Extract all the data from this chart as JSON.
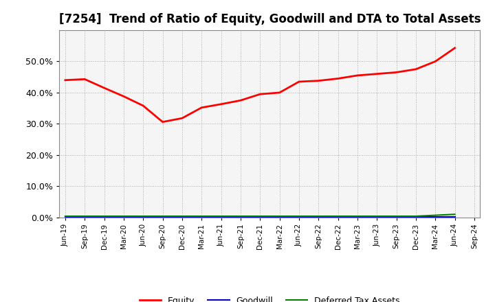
{
  "title": "[7254]  Trend of Ratio of Equity, Goodwill and DTA to Total Assets",
  "x_labels": [
    "Jun-19",
    "Sep-19",
    "Dec-19",
    "Mar-20",
    "Jun-20",
    "Sep-20",
    "Dec-20",
    "Mar-21",
    "Jun-21",
    "Sep-21",
    "Dec-21",
    "Mar-22",
    "Jun-22",
    "Sep-22",
    "Dec-22",
    "Mar-23",
    "Jun-23",
    "Sep-23",
    "Dec-23",
    "Mar-24",
    "Jun-24",
    "Sep-24"
  ],
  "equity_x": [
    0,
    1,
    2,
    3,
    4,
    5,
    6,
    7,
    8,
    9,
    10,
    11,
    12,
    13,
    14,
    15,
    16,
    17,
    18,
    19,
    20
  ],
  "equity": [
    0.44,
    0.443,
    0.415,
    0.388,
    0.358,
    0.306,
    0.318,
    0.352,
    0.363,
    0.375,
    0.395,
    0.4,
    0.435,
    0.438,
    0.445,
    0.455,
    0.46,
    0.465,
    0.475,
    0.5,
    0.543
  ],
  "goodwill_x": [
    0,
    1,
    2,
    3,
    4,
    5,
    6,
    7,
    8,
    9,
    10,
    11,
    12,
    13,
    14,
    15,
    16,
    17,
    18,
    19,
    20
  ],
  "goodwill": [
    0.001,
    0.001,
    0.001,
    0.001,
    0.001,
    0.001,
    0.001,
    0.001,
    0.001,
    0.001,
    0.001,
    0.001,
    0.001,
    0.001,
    0.001,
    0.001,
    0.001,
    0.001,
    0.001,
    0.001,
    0.001
  ],
  "dta_x": [
    0,
    1,
    2,
    3,
    4,
    5,
    6,
    7,
    8,
    9,
    10,
    11,
    12,
    13,
    14,
    15,
    16,
    17,
    18,
    19,
    20
  ],
  "dta": [
    0.004,
    0.004,
    0.004,
    0.004,
    0.004,
    0.004,
    0.004,
    0.004,
    0.004,
    0.004,
    0.004,
    0.004,
    0.004,
    0.004,
    0.004,
    0.004,
    0.004,
    0.004,
    0.004,
    0.007,
    0.01
  ],
  "equity_color": "#ff0000",
  "goodwill_color": "#0000cc",
  "dta_color": "#008000",
  "ylim": [
    0.0,
    0.6
  ],
  "yticks": [
    0.0,
    0.1,
    0.2,
    0.3,
    0.4,
    0.5
  ],
  "background_color": "#ffffff",
  "plot_bg_color": "#f5f5f5",
  "grid_color": "#aaaaaa",
  "title_fontsize": 12,
  "linewidth": 2.0
}
